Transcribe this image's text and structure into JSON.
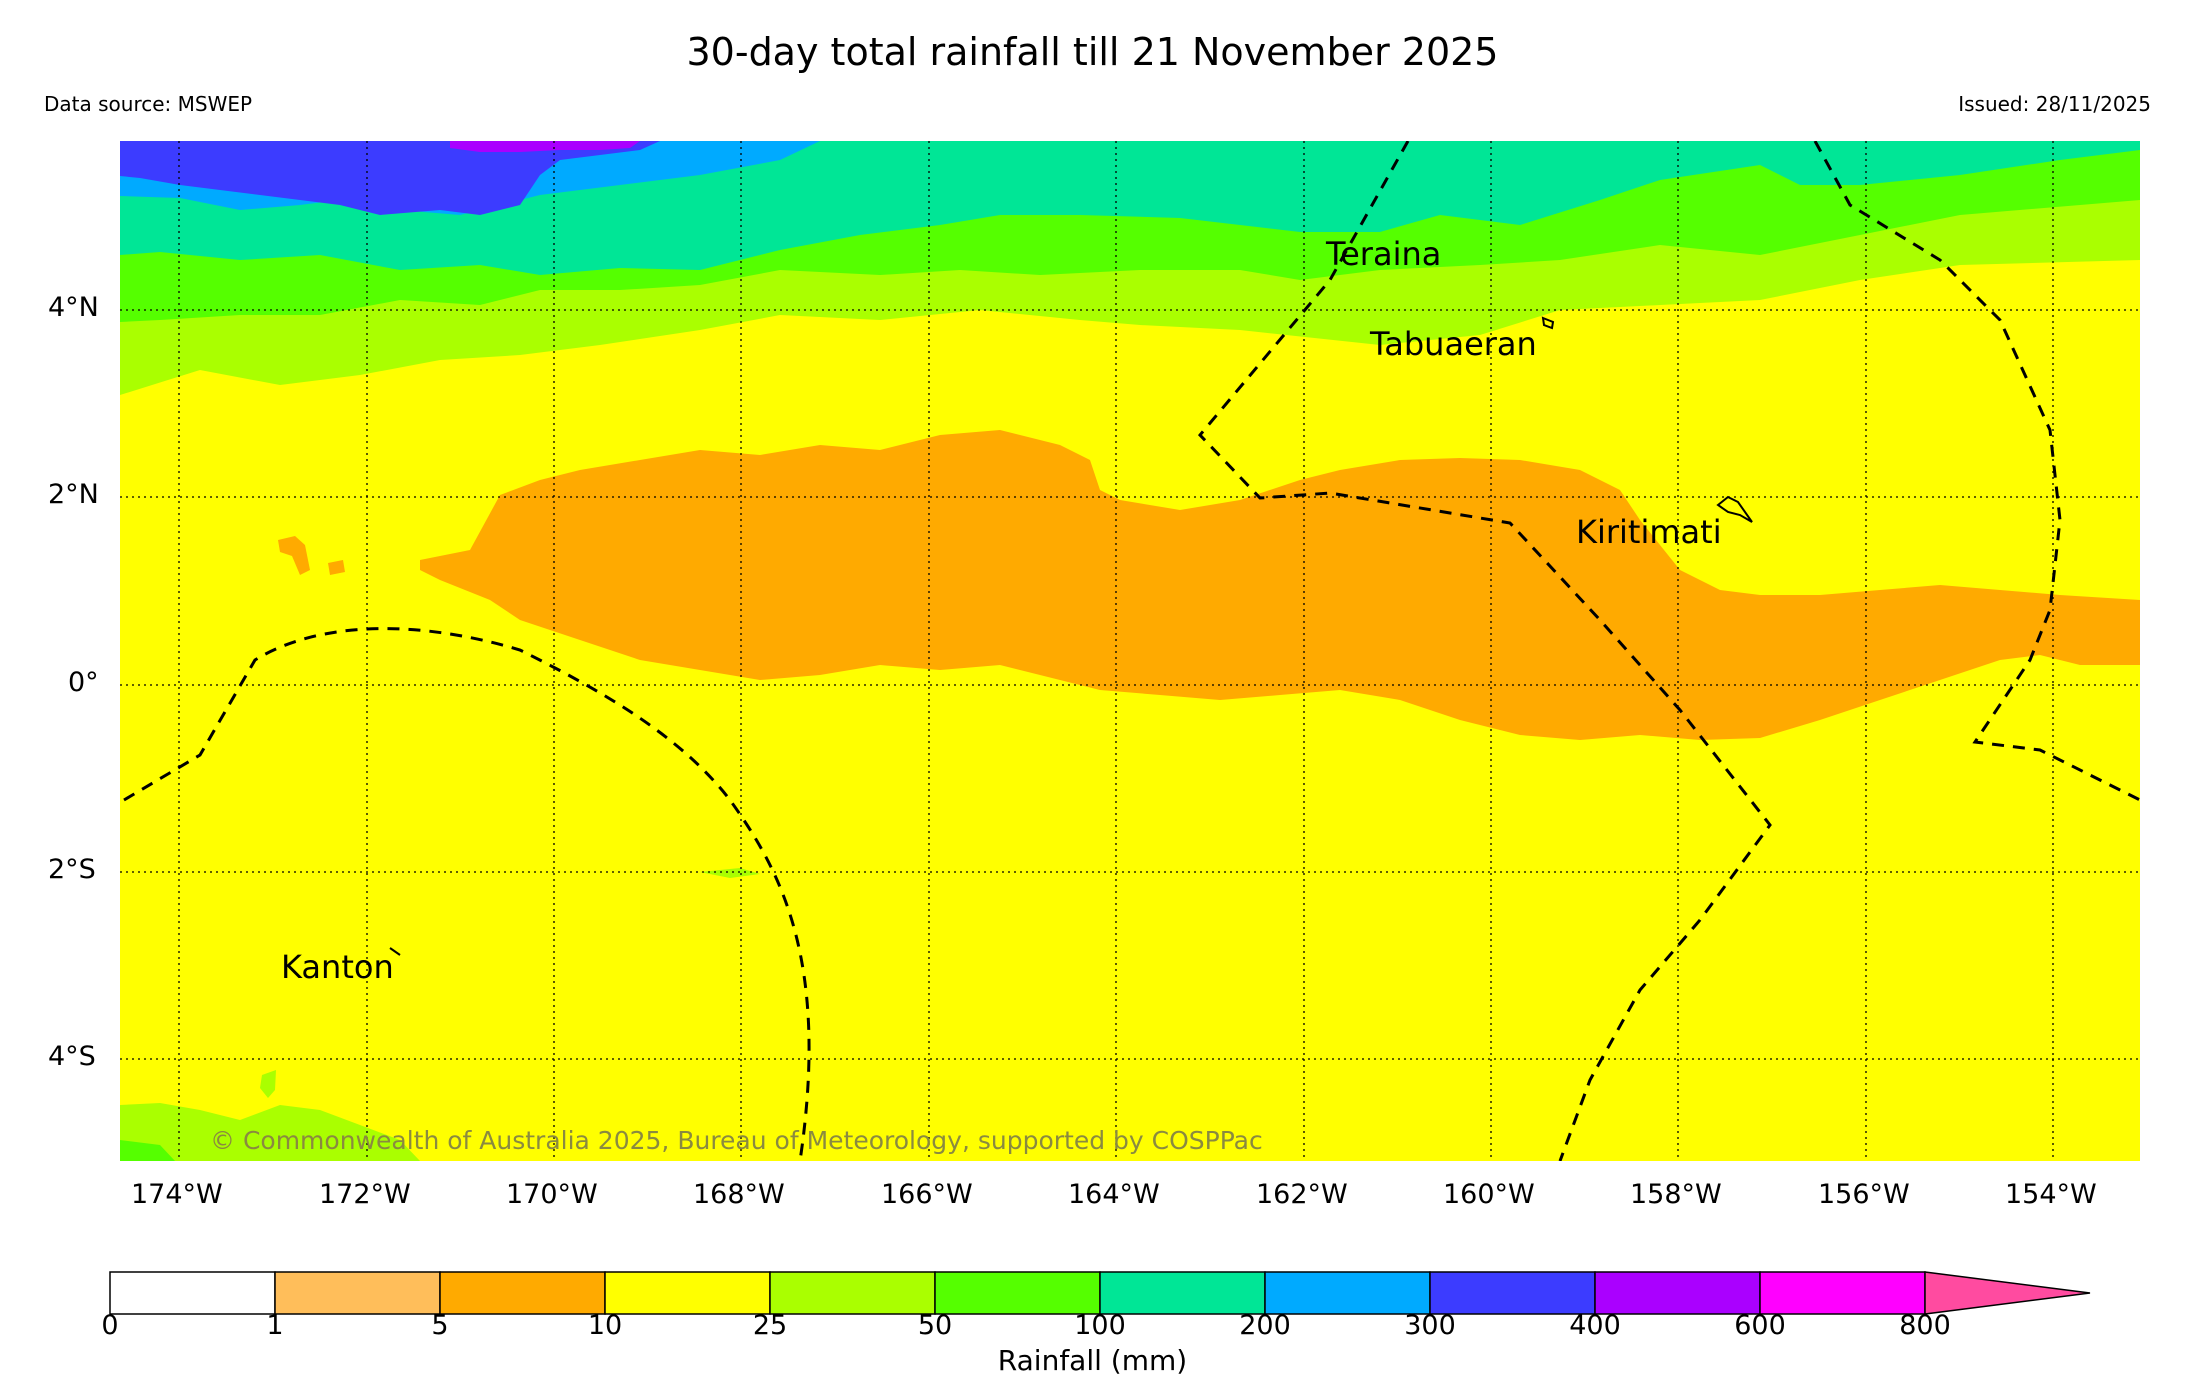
{
  "title": "30-day total rainfall till 21 November 2025",
  "data_source": "Data source: MSWEP",
  "issued": "Issued: 28/11/2025",
  "copyright": "© Commonwealth of Australia 2025, Bureau of Meteorology, supported by COSPPac",
  "places": {
    "teraina": "Teraina",
    "tabuaeran": "Tabuaeran",
    "kiritimati": "Kiritimati",
    "kanton": "Kanton"
  },
  "lat_ticks": [
    "4°N",
    "2°N",
    "0°",
    "2°S",
    "4°S"
  ],
  "lon_ticks": [
    "174°W",
    "172°W",
    "170°W",
    "168°W",
    "166°W",
    "164°W",
    "162°W",
    "160°W",
    "158°W",
    "156°W",
    "154°W"
  ],
  "colorbar": {
    "label": "Rainfall (mm)",
    "ticks": [
      "0",
      "1",
      "5",
      "10",
      "25",
      "50",
      "100",
      "200",
      "300",
      "400",
      "600",
      "800"
    ],
    "colors": [
      "#ffffff",
      "#ffbe5a",
      "#ffaa00",
      "#ffff00",
      "#aaff00",
      "#55ff00",
      "#00e696",
      "#00aaff",
      "#3c3cff",
      "#aa00ff",
      "#ff00ff",
      "#ff4ba0"
    ]
  },
  "colors": {
    "band_25_50": "#aaff00",
    "band_50_100": "#55ff00",
    "band_100_200": "#00e696",
    "band_200_300": "#00aaff",
    "band_300_400": "#3c3cff",
    "band_400_600": "#aa00ff",
    "band_5_10": "#ffaa00",
    "band_10_25": "#ffff00",
    "copyright_text": "#8a8a40"
  }
}
